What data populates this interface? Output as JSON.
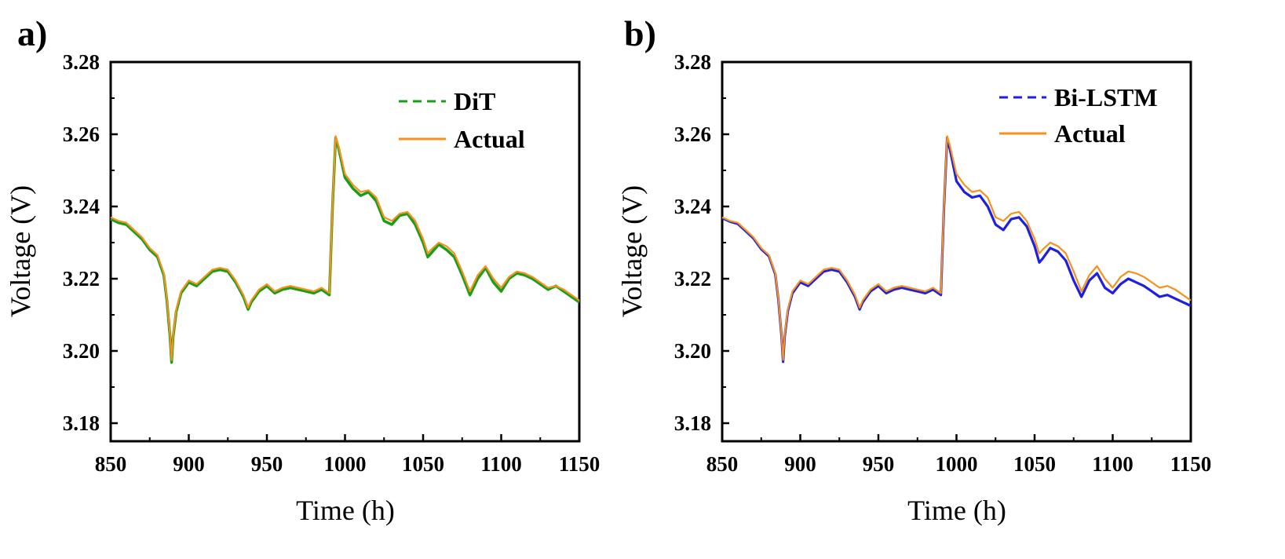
{
  "chart_data": [
    {
      "type": "line",
      "panel_label": "a)",
      "xlabel": "Time (h)",
      "ylabel": "Voltage (V)",
      "xlim": [
        850,
        1150
      ],
      "ylim": [
        3.175,
        3.28
      ],
      "x_ticks": [
        850,
        900,
        950,
        1000,
        1050,
        1100,
        1150
      ],
      "x_tick_labels": [
        "850",
        "900",
        "950",
        "1000",
        "1050",
        "1100",
        "1150"
      ],
      "y_ticks": [
        3.18,
        3.2,
        3.22,
        3.24,
        3.26,
        3.28
      ],
      "y_tick_labels": [
        "3.18",
        "3.20",
        "3.22",
        "3.24",
        "3.26",
        "3.28"
      ],
      "legend_position": "top-right",
      "grid": false,
      "series": [
        {
          "name": "DiT",
          "style": "dashed",
          "color": "#1a9e1a",
          "x": [
            850,
            855,
            860,
            865,
            870,
            875,
            880,
            884,
            886,
            888,
            889,
            890,
            892,
            895,
            900,
            905,
            910,
            915,
            920,
            925,
            930,
            935,
            938,
            940,
            945,
            950,
            955,
            960,
            965,
            970,
            975,
            980,
            985,
            990,
            992,
            994,
            996,
            1000,
            1005,
            1010,
            1015,
            1020,
            1025,
            1030,
            1035,
            1040,
            1045,
            1050,
            1053,
            1055,
            1060,
            1065,
            1070,
            1075,
            1080,
            1085,
            1090,
            1095,
            1100,
            1105,
            1110,
            1115,
            1120,
            1125,
            1130,
            1135,
            1140,
            1145,
            1150
          ],
          "y": [
            3.2365,
            3.2355,
            3.235,
            3.233,
            3.231,
            3.228,
            3.226,
            3.221,
            3.214,
            3.204,
            3.1968,
            3.204,
            3.211,
            3.216,
            3.219,
            3.218,
            3.22,
            3.222,
            3.2225,
            3.222,
            3.219,
            3.215,
            3.2115,
            3.2135,
            3.2165,
            3.218,
            3.216,
            3.217,
            3.2175,
            3.217,
            3.2165,
            3.216,
            3.217,
            3.2155,
            3.24,
            3.259,
            3.256,
            3.248,
            3.245,
            3.243,
            3.244,
            3.2415,
            3.236,
            3.235,
            3.2375,
            3.238,
            3.235,
            3.23,
            3.226,
            3.227,
            3.2295,
            3.228,
            3.226,
            3.221,
            3.2155,
            3.22,
            3.223,
            3.219,
            3.2165,
            3.22,
            3.2215,
            3.221,
            3.22,
            3.2185,
            3.217,
            3.218,
            3.2165,
            3.215,
            3.2135
          ]
        },
        {
          "name": "Actual",
          "style": "solid",
          "color": "#f5921e",
          "x": [
            850,
            855,
            860,
            865,
            870,
            875,
            880,
            884,
            886,
            888,
            889,
            890,
            892,
            895,
            900,
            905,
            910,
            915,
            920,
            925,
            930,
            935,
            938,
            940,
            945,
            950,
            955,
            960,
            965,
            970,
            975,
            980,
            985,
            990,
            992,
            994,
            996,
            1000,
            1005,
            1010,
            1015,
            1020,
            1025,
            1030,
            1035,
            1040,
            1045,
            1050,
            1053,
            1055,
            1060,
            1065,
            1070,
            1075,
            1080,
            1085,
            1090,
            1095,
            1100,
            1105,
            1110,
            1115,
            1120,
            1125,
            1130,
            1135,
            1140,
            1145,
            1150
          ],
          "y": [
            3.237,
            3.236,
            3.2355,
            3.2335,
            3.2315,
            3.2285,
            3.2265,
            3.2215,
            3.2145,
            3.2045,
            3.1975,
            3.2045,
            3.2115,
            3.2165,
            3.2195,
            3.2185,
            3.2205,
            3.2225,
            3.223,
            3.2225,
            3.2195,
            3.2155,
            3.212,
            3.214,
            3.217,
            3.2185,
            3.2165,
            3.2175,
            3.218,
            3.2175,
            3.217,
            3.2165,
            3.2175,
            3.216,
            3.2405,
            3.2595,
            3.2565,
            3.249,
            3.246,
            3.244,
            3.2445,
            3.2425,
            3.237,
            3.236,
            3.238,
            3.2385,
            3.236,
            3.231,
            3.227,
            3.228,
            3.23,
            3.229,
            3.227,
            3.222,
            3.2165,
            3.221,
            3.2235,
            3.22,
            3.2175,
            3.2205,
            3.222,
            3.2215,
            3.2205,
            3.219,
            3.2175,
            3.218,
            3.217,
            3.2155,
            3.214
          ]
        }
      ]
    },
    {
      "type": "line",
      "panel_label": "b)",
      "xlabel": "Time (h)",
      "ylabel": "Voltage (V)",
      "xlim": [
        850,
        1150
      ],
      "ylim": [
        3.175,
        3.28
      ],
      "x_ticks": [
        850,
        900,
        950,
        1000,
        1050,
        1100,
        1150
      ],
      "x_tick_labels": [
        "850",
        "900",
        "950",
        "1000",
        "1050",
        "1100",
        "1150"
      ],
      "y_ticks": [
        3.18,
        3.2,
        3.22,
        3.24,
        3.26,
        3.28
      ],
      "y_tick_labels": [
        "3.18",
        "3.20",
        "3.22",
        "3.24",
        "3.26",
        "3.28"
      ],
      "legend_position": "top-right",
      "grid": false,
      "series": [
        {
          "name": "Bi-LSTM",
          "style": "dashed",
          "color": "#1f1fe0",
          "x": [
            850,
            855,
            860,
            865,
            870,
            875,
            880,
            884,
            886,
            888,
            889,
            890,
            892,
            895,
            900,
            905,
            910,
            915,
            920,
            925,
            930,
            935,
            938,
            940,
            945,
            950,
            955,
            960,
            965,
            970,
            975,
            980,
            985,
            990,
            992,
            994,
            996,
            1000,
            1005,
            1010,
            1015,
            1020,
            1025,
            1030,
            1035,
            1040,
            1045,
            1050,
            1053,
            1055,
            1060,
            1065,
            1070,
            1075,
            1080,
            1085,
            1090,
            1095,
            1100,
            1105,
            1110,
            1115,
            1120,
            1125,
            1130,
            1135,
            1140,
            1145,
            1150
          ],
          "y": [
            3.2368,
            3.2358,
            3.2352,
            3.2332,
            3.2312,
            3.2282,
            3.2262,
            3.2212,
            3.2142,
            3.2042,
            3.197,
            3.204,
            3.211,
            3.216,
            3.219,
            3.218,
            3.22,
            3.222,
            3.2225,
            3.222,
            3.219,
            3.215,
            3.2115,
            3.2135,
            3.2165,
            3.218,
            3.216,
            3.217,
            3.2175,
            3.217,
            3.2165,
            3.216,
            3.217,
            3.2155,
            3.24,
            3.259,
            3.2555,
            3.247,
            3.244,
            3.2425,
            3.243,
            3.24,
            3.235,
            3.2335,
            3.2365,
            3.237,
            3.2345,
            3.229,
            3.2245,
            3.2255,
            3.2285,
            3.2275,
            3.225,
            3.2195,
            3.215,
            3.2195,
            3.2215,
            3.2175,
            3.216,
            3.2185,
            3.22,
            3.219,
            3.218,
            3.2165,
            3.215,
            3.2155,
            3.2145,
            3.2135,
            3.2125
          ]
        },
        {
          "name": "Actual",
          "style": "solid",
          "color": "#f5921e",
          "x": [
            850,
            855,
            860,
            865,
            870,
            875,
            880,
            884,
            886,
            888,
            889,
            890,
            892,
            895,
            900,
            905,
            910,
            915,
            920,
            925,
            930,
            935,
            938,
            940,
            945,
            950,
            955,
            960,
            965,
            970,
            975,
            980,
            985,
            990,
            992,
            994,
            996,
            1000,
            1005,
            1010,
            1015,
            1020,
            1025,
            1030,
            1035,
            1040,
            1045,
            1050,
            1053,
            1055,
            1060,
            1065,
            1070,
            1075,
            1080,
            1085,
            1090,
            1095,
            1100,
            1105,
            1110,
            1115,
            1120,
            1125,
            1130,
            1135,
            1140,
            1145,
            1150
          ],
          "y": [
            3.237,
            3.236,
            3.2355,
            3.2335,
            3.2315,
            3.2285,
            3.2265,
            3.2215,
            3.2145,
            3.2045,
            3.1975,
            3.2045,
            3.2115,
            3.2165,
            3.2195,
            3.2185,
            3.2205,
            3.2225,
            3.223,
            3.2225,
            3.2195,
            3.2155,
            3.212,
            3.214,
            3.217,
            3.2185,
            3.2165,
            3.2175,
            3.218,
            3.2175,
            3.217,
            3.2165,
            3.2175,
            3.216,
            3.2405,
            3.2595,
            3.2565,
            3.249,
            3.246,
            3.244,
            3.2445,
            3.2425,
            3.237,
            3.236,
            3.238,
            3.2385,
            3.236,
            3.231,
            3.227,
            3.228,
            3.23,
            3.229,
            3.227,
            3.222,
            3.2165,
            3.221,
            3.2235,
            3.22,
            3.2175,
            3.2205,
            3.222,
            3.2215,
            3.2205,
            3.219,
            3.2175,
            3.218,
            3.217,
            3.2155,
            3.214
          ]
        }
      ]
    }
  ]
}
